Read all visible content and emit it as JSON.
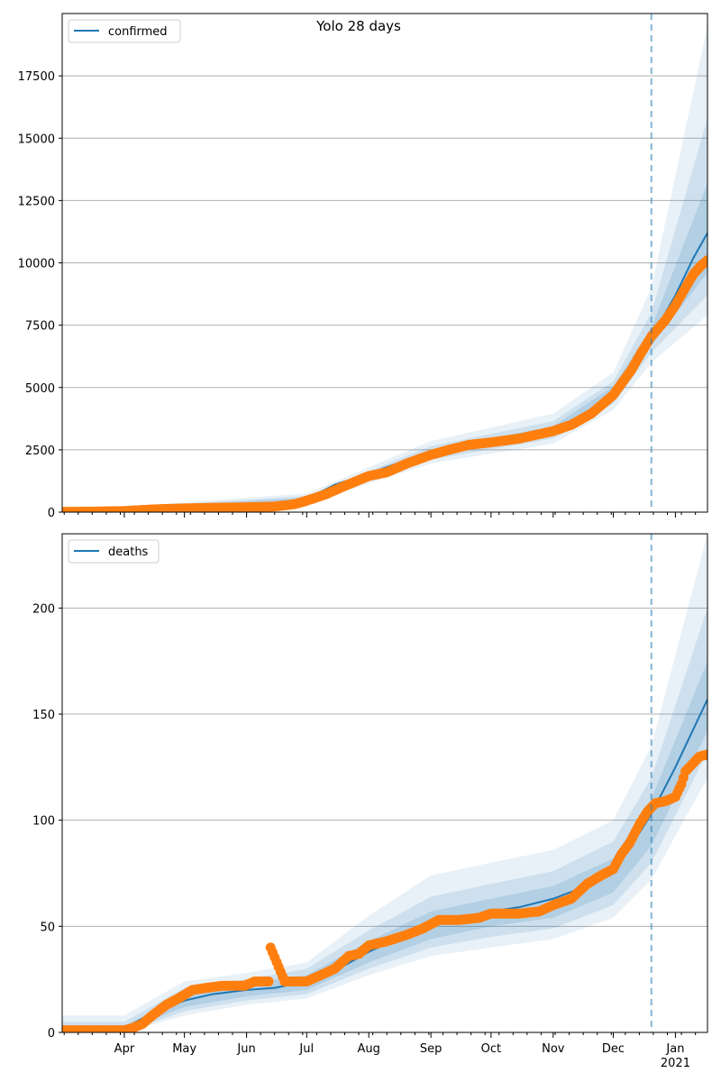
{
  "title": "Yolo 28 days",
  "colors": {
    "model": "#1f77b4",
    "observed": "#ff7f0e",
    "band": "#1f77b4",
    "grid": "#b0b0b0",
    "forecast_line": "#1f77b4"
  },
  "x_axis": {
    "type": "date",
    "range": [
      "2020-03-01",
      "2021-01-17"
    ],
    "major_ticks": [
      {
        "date": "2020-04-01",
        "label": "Apr"
      },
      {
        "date": "2020-05-01",
        "label": "May"
      },
      {
        "date": "2020-06-01",
        "label": "Jun"
      },
      {
        "date": "2020-07-01",
        "label": "Jul"
      },
      {
        "date": "2020-08-01",
        "label": "Aug"
      },
      {
        "date": "2020-09-01",
        "label": "Sep"
      },
      {
        "date": "2020-10-01",
        "label": "Oct"
      },
      {
        "date": "2020-11-01",
        "label": "Nov"
      },
      {
        "date": "2020-12-01",
        "label": "Dec"
      },
      {
        "date": "2021-01-01",
        "label": "Jan"
      }
    ],
    "year_label": "2021",
    "minor_ticks": "weekly"
  },
  "forecast_start": "2020-12-20",
  "chart_data": [
    {
      "type": "line",
      "legend": "confirmed",
      "legend_position": "top-left",
      "grid": "y",
      "ylim": [
        0,
        20000
      ],
      "yticks": [
        "0",
        "2500",
        "5000",
        "7500",
        "10000",
        "12500",
        "15000",
        "17500"
      ],
      "model_points": [
        [
          "2020-03-01",
          10
        ],
        [
          "2020-04-01",
          60
        ],
        [
          "2020-05-01",
          140
        ],
        [
          "2020-06-01",
          190
        ],
        [
          "2020-06-15",
          220
        ],
        [
          "2020-07-01",
          520
        ],
        [
          "2020-07-15",
          1100
        ],
        [
          "2020-08-01",
          1550
        ],
        [
          "2020-08-15",
          1950
        ],
        [
          "2020-09-01",
          2380
        ],
        [
          "2020-09-15",
          2650
        ],
        [
          "2020-10-01",
          2800
        ],
        [
          "2020-10-15",
          2980
        ],
        [
          "2020-11-01",
          3300
        ],
        [
          "2020-11-15",
          3850
        ],
        [
          "2020-12-01",
          4800
        ],
        [
          "2020-12-10",
          5800
        ],
        [
          "2020-12-20",
          7000
        ],
        [
          "2021-01-01",
          8700
        ],
        [
          "2021-01-10",
          10200
        ],
        [
          "2021-01-17",
          11200
        ]
      ],
      "bands": [
        {
          "label": "outer",
          "lower": [
            [
              "2020-03-01",
              0
            ],
            [
              "2020-07-01",
              350
            ],
            [
              "2020-09-01",
              1950
            ],
            [
              "2020-11-01",
              2750
            ],
            [
              "2020-12-01",
              4100
            ],
            [
              "2020-12-20",
              6000
            ],
            [
              "2021-01-17",
              7900
            ]
          ],
          "upper": [
            [
              "2020-03-01",
              40
            ],
            [
              "2020-07-01",
              750
            ],
            [
              "2020-09-01",
              2850
            ],
            [
              "2020-11-01",
              3950
            ],
            [
              "2020-12-01",
              5600
            ],
            [
              "2020-12-20",
              9000
            ],
            [
              "2021-01-17",
              19500
            ]
          ]
        },
        {
          "label": "middle",
          "lower": [
            [
              "2020-03-01",
              0
            ],
            [
              "2020-07-01",
              420
            ],
            [
              "2020-09-01",
              2100
            ],
            [
              "2020-11-01",
              2950
            ],
            [
              "2020-12-01",
              4350
            ],
            [
              "2020-12-20",
              6400
            ],
            [
              "2021-01-17",
              8700
            ]
          ],
          "upper": [
            [
              "2020-03-01",
              25
            ],
            [
              "2020-07-01",
              650
            ],
            [
              "2020-09-01",
              2650
            ],
            [
              "2020-11-01",
              3650
            ],
            [
              "2020-12-01",
              5250
            ],
            [
              "2020-12-20",
              8000
            ],
            [
              "2021-01-17",
              15800
            ]
          ]
        },
        {
          "label": "inner",
          "lower": [
            [
              "2020-03-01",
              2
            ],
            [
              "2020-07-01",
              470
            ],
            [
              "2020-09-01",
              2250
            ],
            [
              "2020-11-01",
              3100
            ],
            [
              "2020-12-01",
              4550
            ],
            [
              "2020-12-20",
              6700
            ],
            [
              "2021-01-17",
              9600
            ]
          ],
          "upper": [
            [
              "2020-03-01",
              15
            ],
            [
              "2020-07-01",
              580
            ],
            [
              "2020-09-01",
              2500
            ],
            [
              "2020-11-01",
              3450
            ],
            [
              "2020-12-01",
              5050
            ],
            [
              "2020-12-20",
              7400
            ],
            [
              "2021-01-17",
              13200
            ]
          ]
        }
      ],
      "observed": [
        [
          "2020-03-01",
          10
        ],
        [
          "2020-03-15",
          20
        ],
        [
          "2020-04-01",
          45
        ],
        [
          "2020-04-15",
          110
        ],
        [
          "2020-05-01",
          150
        ],
        [
          "2020-05-15",
          175
        ],
        [
          "2020-06-01",
          195
        ],
        [
          "2020-06-15",
          225
        ],
        [
          "2020-06-25",
          320
        ],
        [
          "2020-07-01",
          460
        ],
        [
          "2020-07-10",
          700
        ],
        [
          "2020-07-20",
          1050
        ],
        [
          "2020-08-01",
          1450
        ],
        [
          "2020-08-10",
          1600
        ],
        [
          "2020-08-20",
          1950
        ],
        [
          "2020-09-01",
          2300
        ],
        [
          "2020-09-10",
          2500
        ],
        [
          "2020-09-20",
          2700
        ],
        [
          "2020-10-01",
          2800
        ],
        [
          "2020-10-15",
          2950
        ],
        [
          "2020-11-01",
          3250
        ],
        [
          "2020-11-10",
          3500
        ],
        [
          "2020-11-20",
          3950
        ],
        [
          "2020-12-01",
          4700
        ],
        [
          "2020-12-10",
          5700
        ],
        [
          "2020-12-15",
          6400
        ],
        [
          "2020-12-20",
          7050
        ],
        [
          "2020-12-27",
          7700
        ],
        [
          "2021-01-01",
          8300
        ],
        [
          "2021-01-06",
          9000
        ],
        [
          "2021-01-10",
          9550
        ],
        [
          "2021-01-14",
          9900
        ],
        [
          "2021-01-17",
          10100
        ]
      ]
    },
    {
      "type": "line",
      "legend": "deaths",
      "legend_position": "top-left",
      "grid": "y",
      "ylim": [
        0,
        235
      ],
      "yticks": [
        "0",
        "50",
        "100",
        "150",
        "200"
      ],
      "model_points": [
        [
          "2020-03-01",
          0
        ],
        [
          "2020-04-01",
          2
        ],
        [
          "2020-04-15",
          9
        ],
        [
          "2020-05-01",
          15
        ],
        [
          "2020-05-15",
          18
        ],
        [
          "2020-06-01",
          20
        ],
        [
          "2020-06-15",
          21
        ],
        [
          "2020-07-01",
          24
        ],
        [
          "2020-07-15",
          29
        ],
        [
          "2020-08-01",
          38
        ],
        [
          "2020-08-15",
          44
        ],
        [
          "2020-09-01",
          50
        ],
        [
          "2020-09-15",
          54
        ],
        [
          "2020-10-01",
          57
        ],
        [
          "2020-10-15",
          59
        ],
        [
          "2020-11-01",
          63
        ],
        [
          "2020-11-15",
          68
        ],
        [
          "2020-12-01",
          77
        ],
        [
          "2020-12-10",
          88
        ],
        [
          "2020-12-20",
          103
        ],
        [
          "2021-01-01",
          125
        ],
        [
          "2021-01-10",
          143
        ],
        [
          "2021-01-17",
          157
        ]
      ],
      "bands": [
        {
          "label": "outer",
          "lower": [
            [
              "2020-03-01",
              0
            ],
            [
              "2020-04-01",
              0
            ],
            [
              "2020-05-01",
              8
            ],
            [
              "2020-06-01",
              13
            ],
            [
              "2020-07-01",
              16
            ],
            [
              "2020-08-01",
              27
            ],
            [
              "2020-09-01",
              36
            ],
            [
              "2020-10-01",
              40
            ],
            [
              "2020-11-01",
              44
            ],
            [
              "2020-12-01",
              54
            ],
            [
              "2020-12-20",
              72
            ],
            [
              "2021-01-17",
              120
            ]
          ],
          "upper": [
            [
              "2020-03-01",
              8
            ],
            [
              "2020-04-01",
              8
            ],
            [
              "2020-05-01",
              24
            ],
            [
              "2020-06-01",
              28
            ],
            [
              "2020-07-01",
              33
            ],
            [
              "2020-08-01",
              55
            ],
            [
              "2020-09-01",
              74
            ],
            [
              "2020-10-01",
              80
            ],
            [
              "2020-11-01",
              86
            ],
            [
              "2020-12-01",
              100
            ],
            [
              "2020-12-20",
              135
            ],
            [
              "2021-01-17",
              235
            ]
          ]
        },
        {
          "label": "middle",
          "lower": [
            [
              "2020-03-01",
              0
            ],
            [
              "2020-04-01",
              0
            ],
            [
              "2020-05-01",
              10
            ],
            [
              "2020-06-01",
              15
            ],
            [
              "2020-07-01",
              18
            ],
            [
              "2020-08-01",
              30
            ],
            [
              "2020-09-01",
              40
            ],
            [
              "2020-10-01",
              45
            ],
            [
              "2020-11-01",
              49
            ],
            [
              "2020-12-01",
              60
            ],
            [
              "2020-12-20",
              80
            ],
            [
              "2021-01-17",
              132
            ]
          ],
          "upper": [
            [
              "2020-03-01",
              5
            ],
            [
              "2020-04-01",
              5
            ],
            [
              "2020-05-01",
              21
            ],
            [
              "2020-06-01",
              25
            ],
            [
              "2020-07-01",
              30
            ],
            [
              "2020-08-01",
              48
            ],
            [
              "2020-09-01",
              64
            ],
            [
              "2020-10-01",
              70
            ],
            [
              "2020-11-01",
              76
            ],
            [
              "2020-12-01",
              90
            ],
            [
              "2020-12-20",
              120
            ],
            [
              "2021-01-17",
              200
            ]
          ]
        },
        {
          "label": "inner",
          "lower": [
            [
              "2020-03-01",
              0
            ],
            [
              "2020-04-01",
              1
            ],
            [
              "2020-05-01",
              12
            ],
            [
              "2020-06-01",
              17
            ],
            [
              "2020-07-01",
              20
            ],
            [
              "2020-08-01",
              33
            ],
            [
              "2020-09-01",
              44
            ],
            [
              "2020-10-01",
              50
            ],
            [
              "2020-11-01",
              54
            ],
            [
              "2020-12-01",
              66
            ],
            [
              "2020-12-20",
              88
            ],
            [
              "2021-01-17",
              142
            ]
          ],
          "upper": [
            [
              "2020-03-01",
              3
            ],
            [
              "2020-04-01",
              3
            ],
            [
              "2020-05-01",
              18
            ],
            [
              "2020-06-01",
              23
            ],
            [
              "2020-07-01",
              27
            ],
            [
              "2020-08-01",
              43
            ],
            [
              "2020-09-01",
              57
            ],
            [
              "2020-10-01",
              63
            ],
            [
              "2020-11-01",
              69
            ],
            [
              "2020-12-01",
              82
            ],
            [
              "2020-12-20",
              110
            ],
            [
              "2021-01-17",
              175
            ]
          ]
        }
      ],
      "observed": [
        [
          "2020-03-01",
          1
        ],
        [
          "2020-03-15",
          1
        ],
        [
          "2020-03-20",
          1
        ],
        [
          "2020-04-01",
          1
        ],
        [
          "2020-04-05",
          2
        ],
        [
          "2020-04-10",
          4
        ],
        [
          "2020-04-15",
          8
        ],
        [
          "2020-04-22",
          13
        ],
        [
          "2020-04-28",
          16
        ],
        [
          "2020-05-05",
          20
        ],
        [
          "2020-05-12",
          21
        ],
        [
          "2020-05-20",
          22
        ],
        [
          "2020-05-31",
          22
        ],
        [
          "2020-06-05",
          24
        ],
        [
          "2020-06-12",
          24
        ],
        [
          "2020-06-13",
          40
        ],
        [
          "2020-06-20",
          24
        ],
        [
          "2020-07-01",
          24
        ],
        [
          "2020-07-08",
          27
        ],
        [
          "2020-07-15",
          30
        ],
        [
          "2020-07-22",
          36
        ],
        [
          "2020-07-27",
          37
        ],
        [
          "2020-08-01",
          41
        ],
        [
          "2020-08-10",
          43
        ],
        [
          "2020-08-20",
          46
        ],
        [
          "2020-08-28",
          49
        ],
        [
          "2020-09-05",
          53
        ],
        [
          "2020-09-15",
          53
        ],
        [
          "2020-09-25",
          54
        ],
        [
          "2020-10-01",
          56
        ],
        [
          "2020-10-15",
          56
        ],
        [
          "2020-10-25",
          57
        ],
        [
          "2020-11-01",
          60
        ],
        [
          "2020-11-10",
          63
        ],
        [
          "2020-11-18",
          70
        ],
        [
          "2020-11-25",
          74
        ],
        [
          "2020-12-01",
          77
        ],
        [
          "2020-12-05",
          84
        ],
        [
          "2020-12-09",
          89
        ],
        [
          "2020-12-14",
          98
        ],
        [
          "2020-12-18",
          104
        ],
        [
          "2020-12-22",
          108
        ],
        [
          "2020-12-27",
          109
        ],
        [
          "2021-01-01",
          111
        ],
        [
          "2021-01-04",
          117
        ],
        [
          "2021-01-06",
          123
        ],
        [
          "2021-01-09",
          126
        ],
        [
          "2021-01-13",
          130
        ],
        [
          "2021-01-17",
          131
        ]
      ]
    }
  ]
}
